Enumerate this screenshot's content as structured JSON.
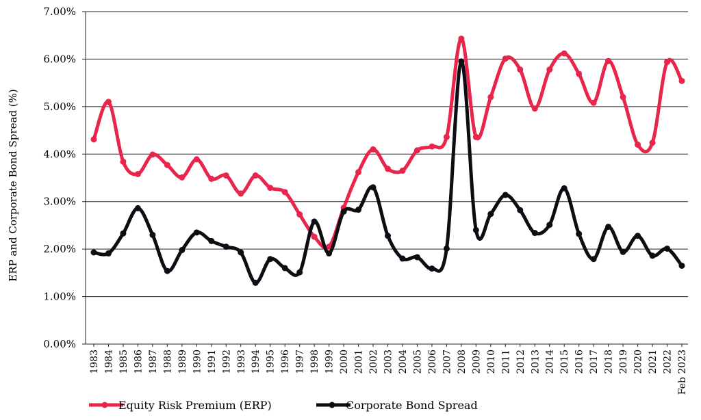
{
  "chart_data": {
    "type": "line",
    "title": "",
    "xlabel": "",
    "ylabel": "ERP and Corporate Bond Spread (%)",
    "ylim": [
      0,
      7
    ],
    "y_ticks": [
      "0.00%",
      "1.00%",
      "2.00%",
      "3.00%",
      "4.00%",
      "5.00%",
      "6.00%",
      "7.00%"
    ],
    "grid": "horizontal",
    "legend_position": "bottom",
    "categories": [
      "1983",
      "1984",
      "1985",
      "1986",
      "1987",
      "1988",
      "1989",
      "1990",
      "1991",
      "1992",
      "1993",
      "1994",
      "1995",
      "1996",
      "1997",
      "1998",
      "1999",
      "2000",
      "2001",
      "2002",
      "2003",
      "2004",
      "2005",
      "2006",
      "2007",
      "2008",
      "2009",
      "2010",
      "2011",
      "2012",
      "2013",
      "2014",
      "2015",
      "2016",
      "2017",
      "2018",
      "2019",
      "2020",
      "2021",
      "2022",
      "Feb 2023"
    ],
    "series": [
      {
        "name": "Equity Risk Premium (ERP)",
        "color": "#e8254a",
        "values": [
          4.31,
          5.1,
          3.84,
          3.58,
          3.99,
          3.77,
          3.51,
          3.89,
          3.48,
          3.55,
          3.17,
          3.55,
          3.29,
          3.2,
          2.73,
          2.26,
          2.05,
          2.87,
          3.62,
          4.1,
          3.69,
          3.65,
          4.08,
          4.16,
          4.36,
          6.43,
          4.36,
          5.2,
          6.01,
          5.78,
          4.96,
          5.78,
          6.12,
          5.69,
          5.08,
          5.96,
          5.2,
          4.2,
          4.24,
          5.94,
          5.54
        ]
      },
      {
        "name": "Corporate Bond Spread",
        "color": "#0d0d14",
        "values": [
          1.93,
          1.91,
          2.33,
          2.86,
          2.3,
          1.54,
          1.98,
          2.35,
          2.17,
          2.05,
          1.93,
          1.29,
          1.79,
          1.6,
          1.51,
          2.58,
          1.91,
          2.79,
          2.83,
          3.3,
          2.28,
          1.8,
          1.83,
          1.59,
          2.01,
          5.95,
          2.4,
          2.74,
          3.14,
          2.82,
          2.34,
          2.51,
          3.28,
          2.32,
          1.79,
          2.47,
          1.94,
          2.28,
          1.86,
          2.01,
          1.65
        ]
      }
    ]
  }
}
